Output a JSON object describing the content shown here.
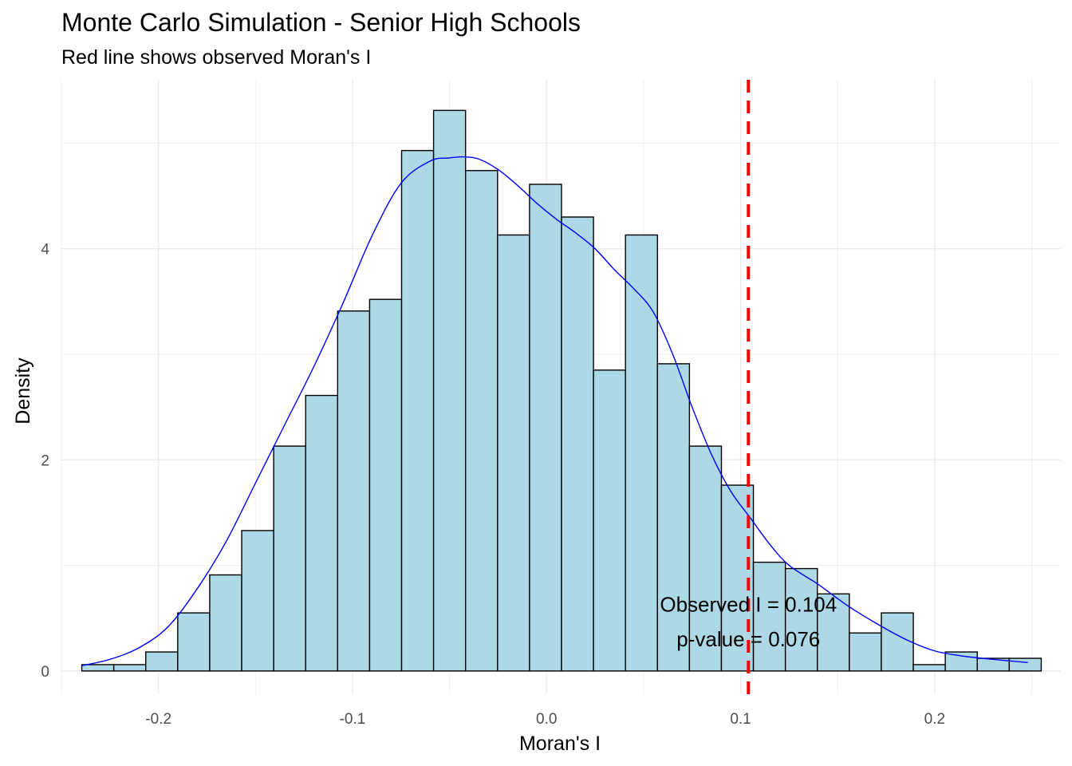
{
  "chart_data": {
    "type": "bar",
    "title": "Monte Carlo Simulation - Senior High Schools",
    "subtitle": "Red line shows observed Moran's I",
    "xlabel": "Moran's I",
    "ylabel": "Density",
    "xlim": [
      -0.25,
      0.265
    ],
    "ylim": [
      -0.22,
      5.6
    ],
    "x_ticks": [
      -0.2,
      -0.1,
      0.0,
      0.1,
      0.2
    ],
    "x_tick_labels": [
      "-0.2",
      "-0.1",
      "0.0",
      "0.1",
      "0.2"
    ],
    "y_ticks": [
      0,
      2,
      4
    ],
    "y_tick_labels": [
      "0",
      "2",
      "4"
    ],
    "x_minor_gridlines": [
      -0.25,
      -0.15,
      -0.05,
      0.05,
      0.15,
      0.25
    ],
    "y_minor_gridlines": [
      1,
      3,
      5
    ],
    "grid": true,
    "bins": {
      "width": 0.01648,
      "start": -0.2395,
      "values": [
        0.06,
        0.06,
        0.18,
        0.55,
        0.91,
        1.33,
        2.13,
        2.61,
        3.41,
        3.52,
        4.93,
        5.31,
        4.74,
        4.13,
        4.61,
        4.3,
        2.85,
        4.13,
        2.91,
        2.13,
        1.76,
        1.03,
        0.97,
        0.73,
        0.36,
        0.55,
        0.06,
        0.18,
        0.12,
        0.12
      ]
    },
    "bar_fill": "#add8e6",
    "bar_stroke": "#000000",
    "density_curve": {
      "color": "#0000ff",
      "x": [
        -0.2395,
        -0.225,
        -0.21,
        -0.195,
        -0.18,
        -0.165,
        -0.15,
        -0.135,
        -0.12,
        -0.105,
        -0.09,
        -0.075,
        -0.06,
        -0.05,
        -0.043,
        -0.035,
        -0.025,
        -0.015,
        -0.005,
        0.005,
        0.015,
        0.025,
        0.035,
        0.045,
        0.055,
        0.065,
        0.075,
        0.085,
        0.095,
        0.105,
        0.115,
        0.125,
        0.14,
        0.155,
        0.17,
        0.185,
        0.2,
        0.215,
        0.23,
        0.248
      ],
      "y": [
        0.05,
        0.11,
        0.22,
        0.42,
        0.78,
        1.23,
        1.78,
        2.33,
        2.88,
        3.48,
        4.12,
        4.62,
        4.83,
        4.86,
        4.87,
        4.85,
        4.75,
        4.6,
        4.43,
        4.28,
        4.15,
        4.0,
        3.8,
        3.62,
        3.4,
        3.0,
        2.5,
        2.05,
        1.7,
        1.45,
        1.2,
        1.0,
        0.82,
        0.62,
        0.45,
        0.3,
        0.19,
        0.14,
        0.11,
        0.08
      ]
    },
    "observed_line": {
      "x": 0.104,
      "color": "#ff0000",
      "style": "dashed"
    },
    "annotations": [
      {
        "text": "Observed I = 0.104",
        "x": 0.104,
        "y": 0.63
      },
      {
        "text": "p-value = 0.076",
        "x": 0.104,
        "y": 0.3
      }
    ]
  }
}
